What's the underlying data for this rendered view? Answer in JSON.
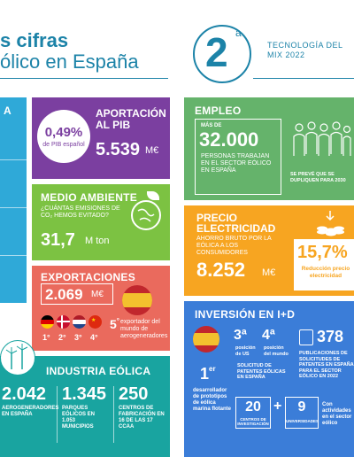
{
  "header": {
    "title_line1": "s cifras",
    "title_line2": "ólico en España",
    "rank_number": "2",
    "rank_sup": "a",
    "rank_text": "TECNOLOGÍA DEL MIX 2022"
  },
  "left_panel": {
    "title": "A"
  },
  "pib": {
    "title": "APORTACIÓN AL PIB",
    "pct": "0,49%",
    "pct_sub": "de PIB español",
    "value": "5.539",
    "unit": "M€"
  },
  "environment": {
    "title": "MEDIO AMBIENTE",
    "question": "¿CUÁNTAS EMISIONES DE CO₂ HEMOS EVITADO?",
    "value": "31,7",
    "unit": "M ton"
  },
  "exports": {
    "title": "EXPORTACIONES",
    "value": "2.069",
    "unit": "M€",
    "ranks": [
      "1°",
      "2°",
      "3°",
      "4°"
    ],
    "badge_num": "5",
    "badge_sup": "°",
    "badge_text": "exportador del mundo de aerogeneradores"
  },
  "industry": {
    "title": "INDUSTRIA EÓLICA",
    "stats": [
      {
        "value": "2.042",
        "label": "AEROGENERADORES EN ESPAÑA"
      },
      {
        "value": "1.345",
        "label": "PARQUES EÓLICOS EN 1.053 MUNICIPIOS"
      },
      {
        "value": "250",
        "label": "CENTROS DE FABRICACIÓN EN 16 DE LAS 17 CCAA"
      }
    ]
  },
  "employment": {
    "title": "EMPLEO",
    "more_than": "MÁS DE",
    "value": "32.000",
    "label": "PERSONAS TRABAJAN EN EL SECTOR EÓLICO EN ESPAÑA",
    "note": "SE PREVÉ QUE SE DUPLIQUEN PARA 2030"
  },
  "price": {
    "title_line1": "PRECIO",
    "title_line2": "ELECTRICIDAD",
    "subtitle": "AHORRO BRUTO POR LA EÓLICA A LOS CONSUMIDORES",
    "value": "8.252",
    "unit": "M€",
    "pct": "15,7%",
    "pct_label": "Reducción precio electricidad"
  },
  "research": {
    "title": "INVERSIÓN EN I+D",
    "rank_us": "3ª",
    "rank_us_label": "posición de US",
    "rank_world": "4ª",
    "rank_world_label": "posición del mundo",
    "patents_label": "SOLICITUD DE PATENTES EÓLICAS EN ESPAÑA",
    "patents_value": "378",
    "patents_text": "PUBLICACIONES DE SOLICITUDES DE PATENTES EN ESPAÑA PARA EL SECTOR EÓLICO EN 2022",
    "first_num": "1",
    "first_sup": "er",
    "first_text": "desarrollador de prototipos de eólica marina flotante",
    "centers_value": "20",
    "centers_label": "CENTROS DE INVESTIGACIÓN",
    "plus": "+",
    "univ_value": "9",
    "univ_label": "UNIVERSIDADES",
    "activity_text": "Con actividades en el sector eólico"
  },
  "colors": {
    "brand": "#1c83a8",
    "purple": "#7b3fa0",
    "green": "#7cc242",
    "coral": "#ea6a5d",
    "teal": "#19a4a0",
    "employment": "#65b36b",
    "orange": "#f7a521",
    "blue": "#3b7dd8",
    "cyan": "#2fa9d8"
  }
}
